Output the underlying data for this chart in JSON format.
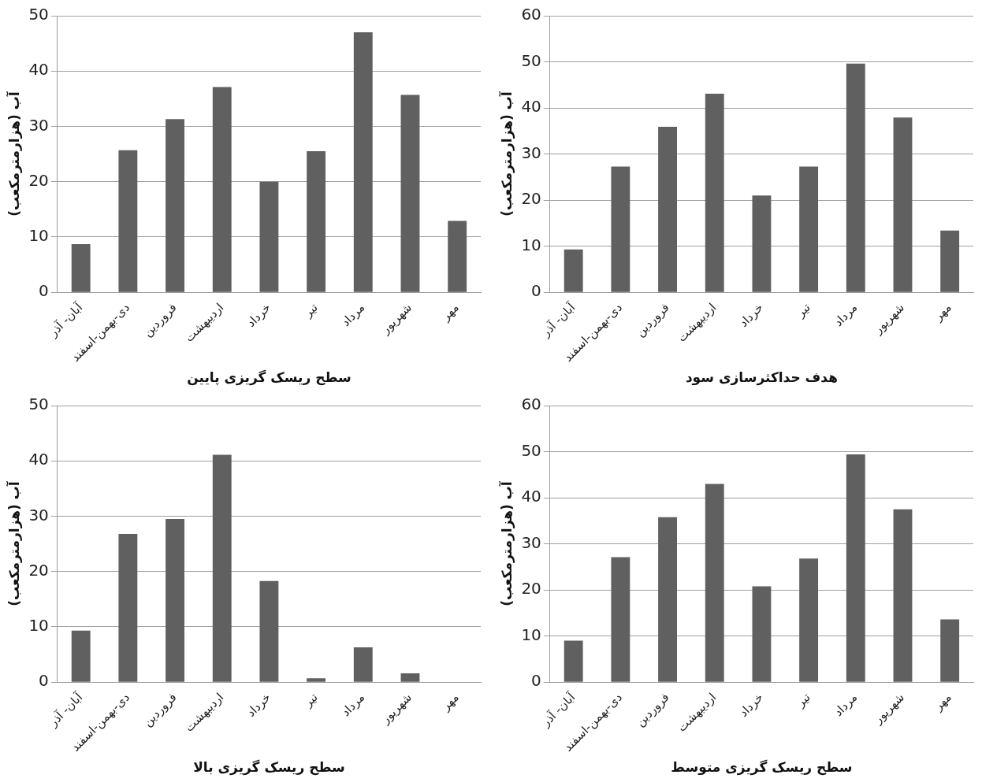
{
  "chart_data": [
    {
      "type": "bar",
      "xlabel": "سطح ریسک گریزی پایین",
      "ylabel": "آب (هزارمترمکعب)",
      "categories": [
        "آبان- آذر",
        "دی-بهمن-اسفند",
        "فروردین",
        "اردیبهشت",
        "خرداد",
        "تیر",
        "مرداد",
        "شهریور",
        "مهر"
      ],
      "values": [
        8.7,
        25.7,
        31.3,
        37.1,
        20,
        25.5,
        47,
        35.7,
        12.9
      ],
      "color": "#606060",
      "ylim": [
        0,
        50
      ],
      "yticks": [
        0,
        10,
        20,
        30,
        40,
        50
      ],
      "grid": "y",
      "legend": false
    },
    {
      "type": "bar",
      "xlabel": "هدف حداکثرسازی سود",
      "ylabel": "آب (هزارمترمکعب)",
      "categories": [
        "آبان- آذر",
        "دی-بهمن-اسفند",
        "فروردین",
        "اردیبهشت",
        "خرداد",
        "تیر",
        "مرداد",
        "شهریور",
        "مهر"
      ],
      "values": [
        9.3,
        27.3,
        35.9,
        43.1,
        21,
        27.3,
        49.6,
        37.9,
        13.4
      ],
      "color": "#606060",
      "ylim": [
        0,
        60
      ],
      "yticks": [
        0,
        10,
        20,
        30,
        40,
        50,
        60
      ],
      "grid": "y",
      "legend": false
    },
    {
      "type": "bar",
      "xlabel": "سطح ریسک گریزی بالا",
      "ylabel": "آب (هزارمترمکعب)",
      "categories": [
        "آبان- آذر",
        "دی-بهمن-اسفند",
        "فروردین",
        "اردیبهشت",
        "خرداد",
        "تیر",
        "مرداد",
        "شهریور",
        "مهر"
      ],
      "values": [
        9.3,
        26.8,
        29.5,
        41.1,
        18.3,
        0.7,
        6.3,
        1.6,
        0
      ],
      "color": "#606060",
      "ylim": [
        0,
        50
      ],
      "yticks": [
        0,
        10,
        20,
        30,
        40,
        50
      ],
      "grid": "y",
      "legend": false
    },
    {
      "type": "bar",
      "xlabel": "سطح ریسک گریزی متوسط",
      "ylabel": "آب (هزارمترمکعب)",
      "categories": [
        "آبان- آذر",
        "دی-بهمن-اسفند",
        "فروردین",
        "اردیبهشت",
        "خرداد",
        "تیر",
        "مرداد",
        "شهریور",
        "مهر"
      ],
      "values": [
        9,
        27.1,
        35.8,
        43,
        20.8,
        26.8,
        49.4,
        37.5,
        13.6
      ],
      "color": "#606060",
      "ylim": [
        0,
        60
      ],
      "yticks": [
        0,
        10,
        20,
        30,
        40,
        50,
        60
      ],
      "grid": "y",
      "legend": false
    }
  ]
}
